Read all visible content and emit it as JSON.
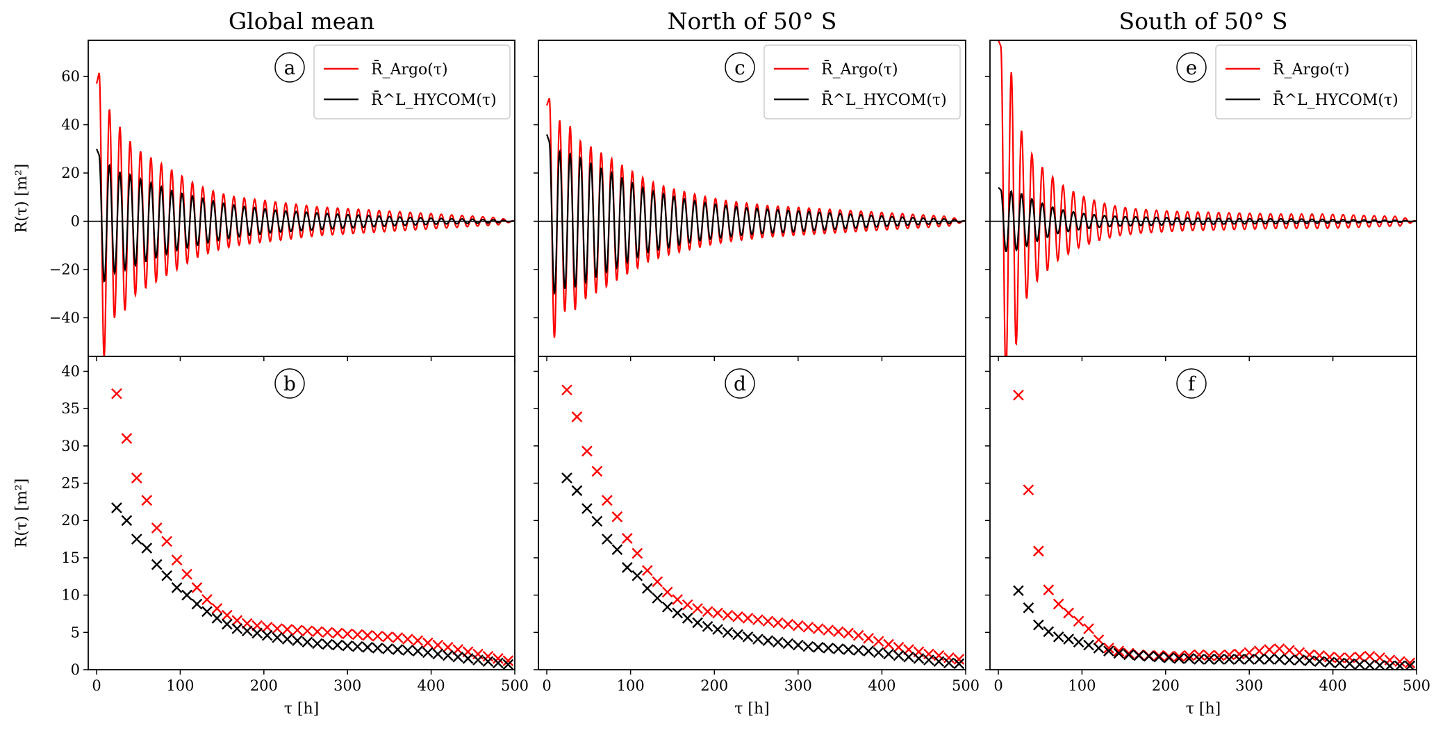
{
  "figure": {
    "column_titles": [
      "Global mean",
      "North of 50° S",
      "South of 50° S"
    ],
    "y_label": "R(τ) [m²]",
    "x_label": "τ [h]",
    "panel_letters": [
      "a",
      "c",
      "e",
      "b",
      "d",
      "f"
    ],
    "legend": {
      "argo": "R̄_Argo(τ)",
      "hycom": "R̄^L_HYCOM(τ)"
    },
    "colors": {
      "argo": "#ff0000",
      "hycom": "#000000"
    }
  },
  "chart_data": [
    {
      "type": "line",
      "panel": "a",
      "column_title": "Global mean",
      "xlim": [
        -10,
        500
      ],
      "ylim": [
        -56,
        75
      ],
      "xticks": [
        0,
        100,
        200,
        300,
        400,
        500
      ],
      "yticks": [
        -40,
        -20,
        0,
        20,
        40,
        60
      ],
      "ylabel": "R(τ) [m²]",
      "legend_placement": "top-right",
      "series": [
        {
          "name": "R̄_Argo(τ)",
          "color": "#ff0000",
          "x": [
            0,
            6,
            12,
            18,
            24,
            30,
            36,
            48,
            72,
            96,
            120,
            144,
            168,
            192,
            216,
            240,
            264,
            288,
            312,
            336,
            360,
            384,
            408,
            432,
            456,
            480,
            500
          ],
          "y": [
            57,
            66,
            -47,
            46,
            -36,
            41,
            -35,
            -30,
            -25,
            -20,
            -15,
            -12,
            -10,
            -9,
            -8,
            -7,
            -6,
            -5.5,
            -5,
            -4.5,
            -4,
            -3.5,
            -3,
            -2.5,
            -2,
            -1.5,
            0
          ]
        },
        {
          "name": "R̄^L_HYCOM(τ)",
          "color": "#000000",
          "x": [
            0,
            6,
            12,
            18,
            24,
            30,
            36,
            48,
            72,
            96,
            120,
            144,
            168,
            192,
            216,
            240,
            264,
            288,
            312,
            336,
            360,
            384,
            408,
            432,
            456,
            480,
            500
          ],
          "y": [
            30,
            25,
            -25,
            22,
            -21,
            20,
            -20,
            -18,
            -15,
            -12,
            -10,
            -8,
            -6.5,
            -5.5,
            -4.5,
            -4,
            -3.5,
            -3,
            -2.6,
            -2.2,
            -1.8,
            -1.5,
            -1.2,
            -1,
            -0.8,
            -0.6,
            0
          ]
        }
      ]
    },
    {
      "type": "line",
      "panel": "c",
      "column_title": "North of 50° S",
      "xlim": [
        -10,
        500
      ],
      "ylim": [
        -56,
        75
      ],
      "xticks": [
        0,
        100,
        200,
        300,
        400,
        500
      ],
      "yticks": [
        -40,
        -20,
        0,
        20,
        40,
        60
      ],
      "legend_placement": "top-right",
      "series": [
        {
          "name": "R̄_Argo(τ)",
          "color": "#ff0000",
          "x": [
            0,
            6,
            12,
            18,
            24,
            30,
            36,
            48,
            72,
            96,
            120,
            144,
            168,
            192,
            216,
            240,
            264,
            288,
            312,
            336,
            360,
            384,
            408,
            432,
            456,
            480,
            500
          ],
          "y": [
            48,
            54,
            -43,
            41,
            -35,
            42,
            -34,
            -32,
            -27,
            -22,
            -17,
            -14,
            -12,
            -10,
            -8.5,
            -7.5,
            -6.5,
            -6,
            -5.5,
            -5,
            -4.5,
            -4,
            -3.5,
            -3,
            -2.5,
            -2,
            0
          ]
        },
        {
          "name": "R̄^L_HYCOM(τ)",
          "color": "#000000",
          "x": [
            0,
            6,
            12,
            18,
            24,
            30,
            36,
            48,
            72,
            96,
            120,
            144,
            168,
            192,
            216,
            240,
            264,
            288,
            312,
            336,
            360,
            384,
            408,
            432,
            456,
            480,
            500
          ],
          "y": [
            36,
            30,
            -30,
            28,
            -28,
            28,
            -27,
            -25,
            -21,
            -17,
            -13,
            -11,
            -9,
            -7.5,
            -6.5,
            -5.5,
            -5,
            -4.5,
            -4,
            -3.5,
            -3,
            -2.5,
            -2,
            -1.6,
            -1.2,
            -0.9,
            0
          ]
        }
      ]
    },
    {
      "type": "line",
      "panel": "e",
      "column_title": "South of 50° S",
      "xlim": [
        -10,
        500
      ],
      "ylim": [
        -56,
        75
      ],
      "xticks": [
        0,
        100,
        200,
        300,
        400,
        500
      ],
      "yticks": [
        -40,
        -20,
        0,
        20,
        40,
        60
      ],
      "legend_placement": "top-right",
      "series": [
        {
          "name": "R̄_Argo(τ)",
          "color": "#ff0000",
          "x": [
            0,
            6,
            12,
            18,
            24,
            30,
            36,
            48,
            72,
            96,
            120,
            144,
            168,
            192,
            216,
            240,
            264,
            288,
            312,
            336,
            360,
            384,
            408,
            432,
            456,
            480,
            500
          ],
          "y": [
            75,
            70,
            -56,
            66,
            -40,
            36,
            -30,
            -24,
            -16,
            -11,
            -8,
            -6,
            -5,
            -4.5,
            -4,
            -3.8,
            -3.6,
            -3.4,
            -3.2,
            -3,
            -3,
            -3,
            -2.8,
            -2.5,
            -2.2,
            -2,
            0
          ]
        },
        {
          "name": "R̄^L_HYCOM(τ)",
          "color": "#000000",
          "x": [
            0,
            6,
            12,
            18,
            24,
            30,
            36,
            48,
            72,
            96,
            120,
            144,
            168,
            192,
            216,
            240,
            264,
            288,
            312,
            336,
            360,
            384,
            408,
            432,
            456,
            480,
            500
          ],
          "y": [
            14,
            12,
            -13,
            12,
            -12,
            11,
            -10,
            -8,
            -5,
            -3.5,
            -2.5,
            -2,
            -1.8,
            -1.6,
            -1.4,
            -1.3,
            -1.2,
            -1.1,
            -1,
            -1,
            -0.9,
            -0.8,
            -0.7,
            -0.6,
            -0.5,
            -0.4,
            0
          ]
        }
      ]
    },
    {
      "type": "scatter",
      "panel": "b",
      "xlim": [
        -10,
        500
      ],
      "ylim": [
        0,
        42
      ],
      "xticks": [
        0,
        100,
        200,
        300,
        400,
        500
      ],
      "yticks": [
        0,
        5,
        10,
        15,
        20,
        25,
        30,
        35,
        40
      ],
      "xlabel": "τ [h]",
      "ylabel": "R(τ) [m²]",
      "x": [
        24,
        36,
        48,
        60,
        72,
        84,
        96,
        108,
        120,
        132,
        144,
        156,
        168,
        180,
        192,
        204,
        216,
        228,
        240,
        252,
        264,
        276,
        288,
        300,
        312,
        324,
        336,
        348,
        360,
        372,
        384,
        396,
        408,
        420,
        432,
        444,
        456,
        468,
        480,
        492
      ],
      "series": [
        {
          "name": "R̄_Argo(τ)",
          "color": "#ff0000",
          "values": [
            37.0,
            31.0,
            25.7,
            22.7,
            19.0,
            17.2,
            14.7,
            12.8,
            11.0,
            9.4,
            8.2,
            7.3,
            6.6,
            6.2,
            5.9,
            5.7,
            5.5,
            5.4,
            5.3,
            5.2,
            5.1,
            5.0,
            4.9,
            4.8,
            4.7,
            4.6,
            4.5,
            4.4,
            4.3,
            4.1,
            3.9,
            3.6,
            3.3,
            3.0,
            2.7,
            2.4,
            2.1,
            1.8,
            1.5,
            1.2
          ]
        },
        {
          "name": "R̄^L_HYCOM(τ)",
          "color": "#000000",
          "values": [
            21.7,
            20.0,
            17.5,
            16.3,
            14.1,
            12.6,
            11.0,
            10.0,
            8.8,
            7.8,
            6.9,
            6.1,
            5.5,
            5.2,
            4.9,
            4.6,
            4.3,
            4.1,
            3.9,
            3.7,
            3.5,
            3.4,
            3.3,
            3.2,
            3.1,
            3.0,
            2.9,
            2.8,
            2.7,
            2.6,
            2.5,
            2.3,
            2.1,
            1.9,
            1.7,
            1.5,
            1.3,
            1.1,
            0.9,
            0.7
          ]
        }
      ]
    },
    {
      "type": "scatter",
      "panel": "d",
      "xlim": [
        -10,
        500
      ],
      "ylim": [
        0,
        42
      ],
      "xticks": [
        0,
        100,
        200,
        300,
        400,
        500
      ],
      "yticks": [
        0,
        5,
        10,
        15,
        20,
        25,
        30,
        35,
        40
      ],
      "xlabel": "τ [h]",
      "x": [
        24,
        36,
        48,
        60,
        72,
        84,
        96,
        108,
        120,
        132,
        144,
        156,
        168,
        180,
        192,
        204,
        216,
        228,
        240,
        252,
        264,
        276,
        288,
        300,
        312,
        324,
        336,
        348,
        360,
        372,
        384,
        396,
        408,
        420,
        432,
        444,
        456,
        468,
        480,
        492
      ],
      "series": [
        {
          "name": "R̄_Argo(τ)",
          "color": "#ff0000",
          "values": [
            37.5,
            33.9,
            29.3,
            26.6,
            22.7,
            20.5,
            17.6,
            15.6,
            13.3,
            11.8,
            10.4,
            9.4,
            8.7,
            8.2,
            7.8,
            7.6,
            7.3,
            7.1,
            6.9,
            6.7,
            6.5,
            6.3,
            6.1,
            5.9,
            5.7,
            5.5,
            5.3,
            5.1,
            4.9,
            4.6,
            4.2,
            3.8,
            3.4,
            3.0,
            2.7,
            2.4,
            2.1,
            1.9,
            1.6,
            1.4
          ]
        },
        {
          "name": "R̄^L_HYCOM(τ)",
          "color": "#000000",
          "values": [
            25.7,
            24.0,
            21.6,
            19.9,
            17.5,
            16.1,
            13.7,
            12.6,
            10.9,
            9.6,
            8.4,
            7.6,
            6.9,
            6.3,
            5.8,
            5.4,
            5.0,
            4.7,
            4.4,
            4.1,
            3.9,
            3.7,
            3.5,
            3.3,
            3.1,
            3.0,
            2.9,
            2.8,
            2.7,
            2.6,
            2.5,
            2.3,
            2.1,
            1.9,
            1.7,
            1.5,
            1.3,
            1.1,
            0.9,
            0.8
          ]
        }
      ]
    },
    {
      "type": "scatter",
      "panel": "f",
      "xlim": [
        -10,
        500
      ],
      "ylim": [
        0,
        42
      ],
      "xticks": [
        0,
        100,
        200,
        300,
        400,
        500
      ],
      "yticks": [
        0,
        5,
        10,
        15,
        20,
        25,
        30,
        35,
        40
      ],
      "xlabel": "τ [h]",
      "x": [
        24,
        36,
        48,
        60,
        72,
        84,
        96,
        108,
        120,
        132,
        144,
        156,
        168,
        180,
        192,
        204,
        216,
        228,
        240,
        252,
        264,
        276,
        288,
        300,
        312,
        324,
        336,
        348,
        360,
        372,
        384,
        396,
        408,
        420,
        432,
        444,
        456,
        468,
        480,
        492
      ],
      "series": [
        {
          "name": "R̄_Argo(τ)",
          "color": "#ff0000",
          "values": [
            36.8,
            24.1,
            15.9,
            10.7,
            8.8,
            7.6,
            6.5,
            5.5,
            4.0,
            2.9,
            2.5,
            2.2,
            2.0,
            1.9,
            1.9,
            1.8,
            1.8,
            1.9,
            2.0,
            1.9,
            1.9,
            2.0,
            2.1,
            2.3,
            2.5,
            2.7,
            2.8,
            2.6,
            2.3,
            2.0,
            1.9,
            1.7,
            1.6,
            1.6,
            1.7,
            1.8,
            1.6,
            1.3,
            1.1,
            0.9
          ]
        },
        {
          "name": "R̄^L_HYCOM(τ)",
          "color": "#000000",
          "values": [
            10.6,
            8.3,
            6.0,
            5.1,
            4.4,
            4.1,
            3.7,
            3.3,
            2.9,
            2.5,
            2.2,
            2.0,
            1.9,
            1.8,
            1.7,
            1.6,
            1.5,
            1.5,
            1.4,
            1.4,
            1.4,
            1.4,
            1.4,
            1.4,
            1.4,
            1.4,
            1.4,
            1.3,
            1.3,
            1.2,
            1.1,
            1.0,
            0.9,
            0.8,
            0.7,
            0.6,
            0.6,
            0.5,
            0.5,
            0.5
          ]
        }
      ]
    }
  ]
}
